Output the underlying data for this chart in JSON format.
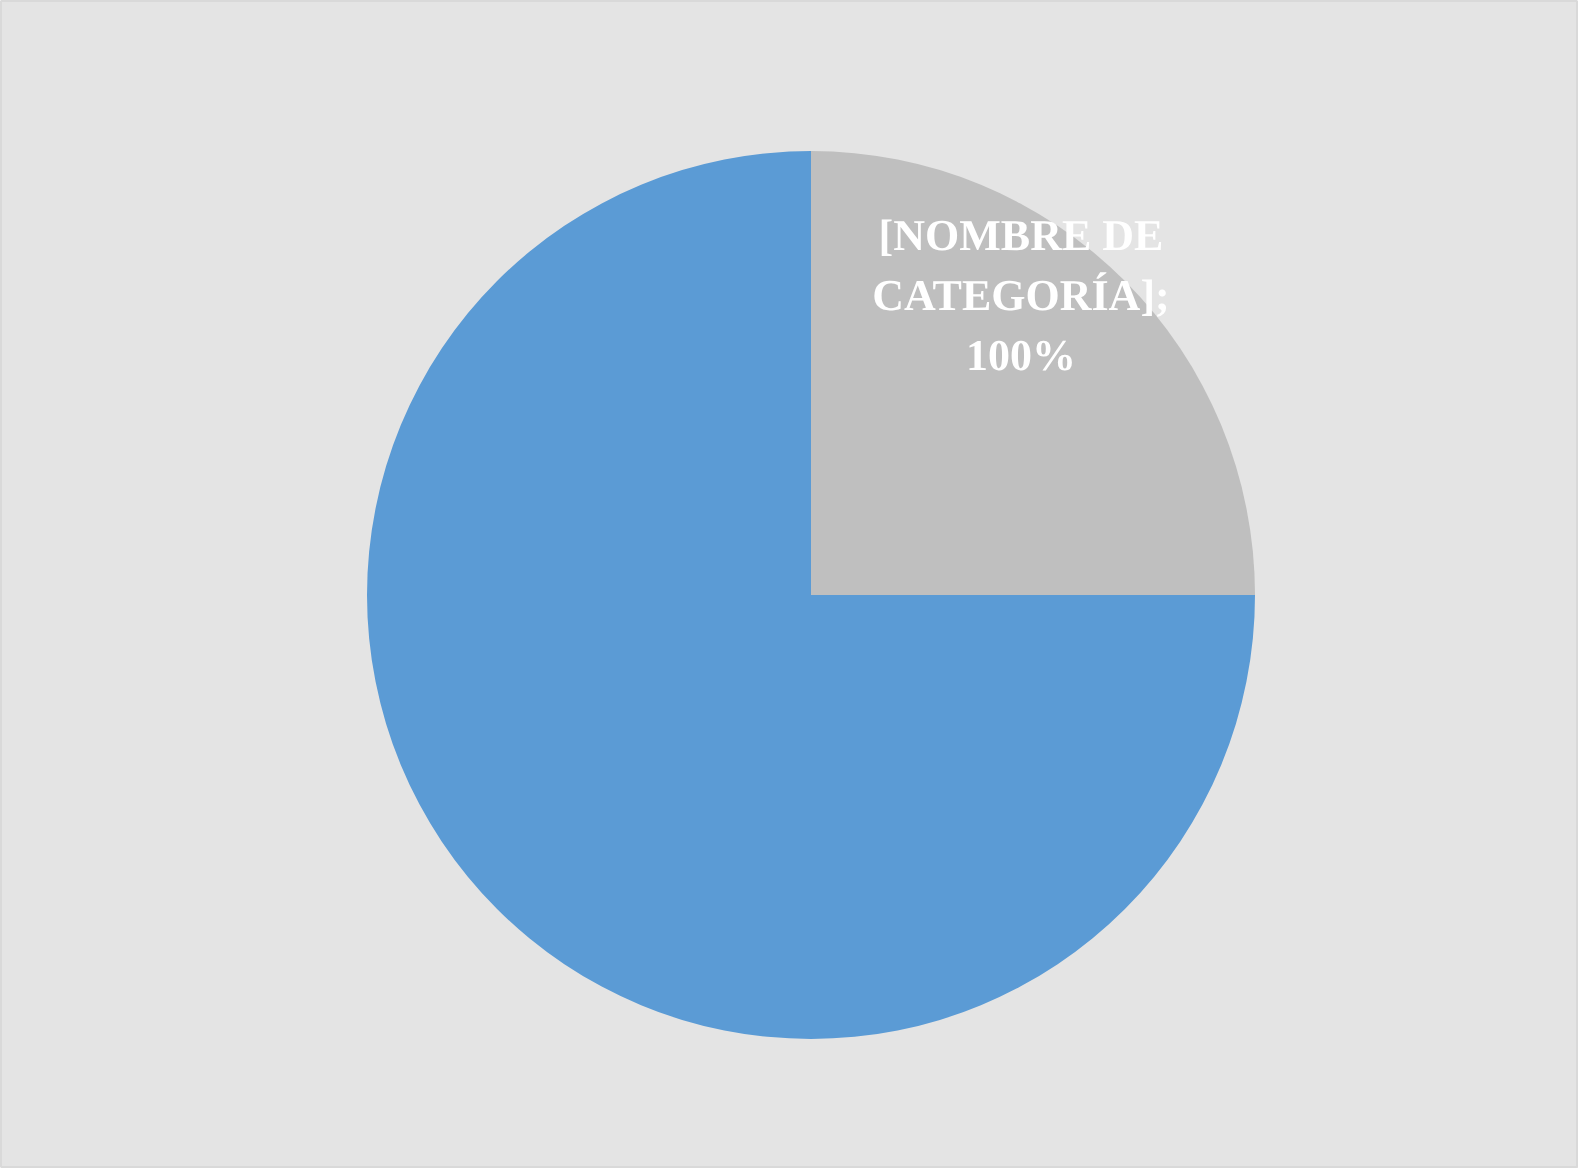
{
  "chart_data": {
    "type": "pie",
    "categories": [
      null,
      null
    ],
    "values": [
      25,
      75
    ],
    "colors": [
      "#bfbfbf",
      "#5b9bd5"
    ],
    "annotations": [
      "[NOMBRE DE CATEGORÍA]; 100%"
    ]
  }
}
